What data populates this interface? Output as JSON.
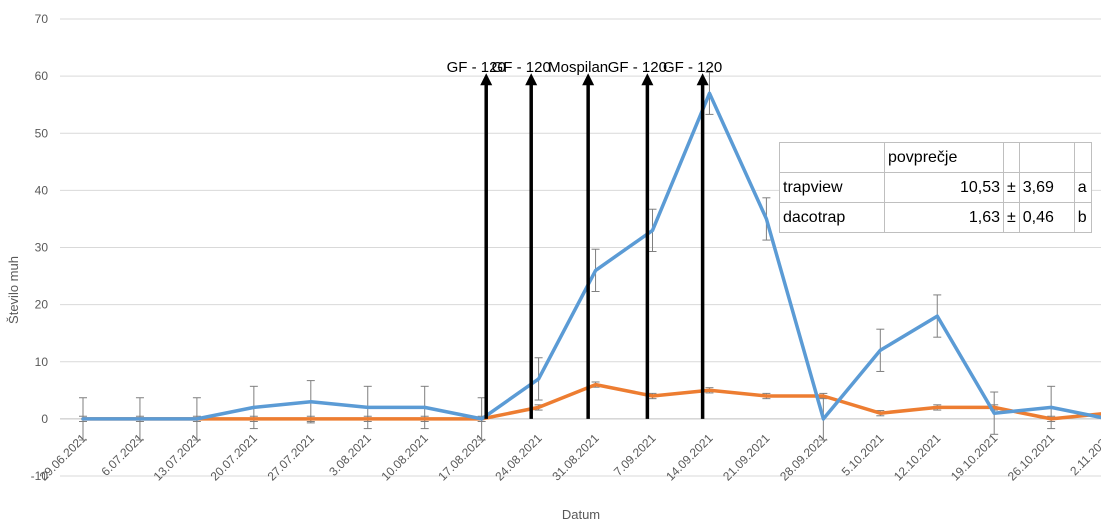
{
  "chart_data": {
    "type": "line",
    "xlabel": "Datum",
    "ylabel": "Število muh",
    "ylim": [
      -10,
      70
    ],
    "yticks": [
      -10,
      0,
      10,
      20,
      30,
      40,
      50,
      60,
      70
    ],
    "grid": true,
    "categories": [
      "29.06.2021",
      "6.07.2021",
      "13.07.2021",
      "20.07.2021",
      "27.07.2021",
      "3.08.2021",
      "10.08.2021",
      "17.08.2021",
      "24.08.2021",
      "31.08.2021",
      "7.09.2021",
      "14.09.2021",
      "21.09.2021",
      "28.09.2021",
      "5.10.2021",
      "12.10.2021",
      "19.10.2021",
      "26.10.2021",
      "2.11.2021"
    ],
    "series": [
      {
        "color": "#5B9BD5",
        "values": [
          0,
          0,
          0,
          2,
          3,
          2,
          2,
          0,
          7,
          26,
          33,
          57,
          35,
          0,
          12,
          18,
          1,
          2,
          0
        ],
        "errors": [
          3.7,
          3.7,
          3.7,
          3.7,
          3.7,
          3.7,
          3.7,
          3.7,
          3.7,
          3.7,
          3.7,
          3.7,
          3.7,
          3.7,
          3.7,
          3.7,
          3.7,
          3.7,
          3.7
        ]
      },
      {
        "color": "#ED7D31",
        "values": [
          0,
          0,
          0,
          0,
          0,
          0,
          0,
          0,
          2,
          6,
          4,
          5,
          4,
          4,
          1,
          2,
          2,
          0,
          1
        ],
        "errors": [
          0.46,
          0.46,
          0.46,
          0.46,
          0.46,
          0.46,
          0.46,
          0.46,
          0.46,
          0.46,
          0.46,
          0.46,
          0.46,
          0.46,
          0.46,
          0.46,
          0.46,
          0.46,
          0.46
        ]
      }
    ],
    "annotations": [
      {
        "label": "GF - 120",
        "x": 7.08
      },
      {
        "label": "GF - 120",
        "x": 7.87
      },
      {
        "label": "Mospilan",
        "x": 8.87
      },
      {
        "label": "GF - 120",
        "x": 9.91
      },
      {
        "label": "GF - 120",
        "x": 10.88
      }
    ],
    "table": {
      "header": [
        "",
        "povprečje",
        "",
        "",
        ""
      ],
      "rows": [
        [
          "trapview",
          "10,53",
          "±",
          "3,69",
          "a"
        ],
        [
          "dacotrap",
          "1,63",
          "±",
          "0,46",
          "b"
        ]
      ]
    }
  }
}
